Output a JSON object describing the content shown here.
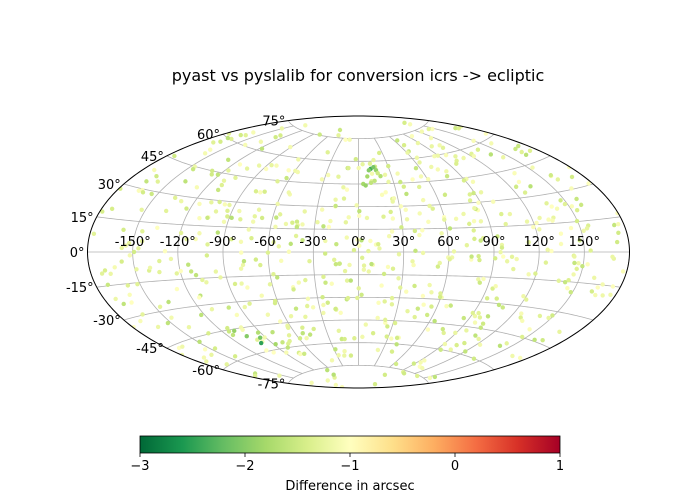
{
  "chart_data": {
    "type": "scatter",
    "projection": "aitoff",
    "title": "pyast vs pyslalib for conversion icrs -> ecliptic",
    "x_ticks": [
      "-150°",
      "-120°",
      "-90°",
      "-60°",
      "-30°",
      "0°",
      "30°",
      "60°",
      "90°",
      "120°",
      "150°"
    ],
    "y_ticks": [
      "-75°",
      "-60°",
      "-45°",
      "-30°",
      "-15°",
      "0°",
      "15°",
      "30°",
      "45°",
      "60°",
      "75°"
    ],
    "grid": true,
    "colorbar": {
      "label": "Difference in arcsec",
      "range": [
        -3,
        1
      ],
      "tick_labels": [
        "−3",
        "−2",
        "−1",
        "0",
        "1"
      ],
      "colormap": "RdYlGn_r",
      "colors": [
        "#006837",
        "#1a9850",
        "#66bd63",
        "#a6d96a",
        "#d9ef8b",
        "#ffffbf",
        "#fee08b",
        "#fdae61",
        "#f46d43",
        "#d73027",
        "#a50026"
      ]
    },
    "point_size": 2.2,
    "cluster_points": [
      {
        "lon": 12,
        "lat": 55,
        "value": -2.4
      },
      {
        "lon": 15,
        "lat": 56,
        "value": -2.1
      },
      {
        "lon": 10,
        "lat": 54,
        "value": -2.0
      },
      {
        "lon": 17,
        "lat": 54,
        "value": -1.9
      },
      {
        "lon": 8,
        "lat": 50,
        "value": -1.8
      },
      {
        "lon": 20,
        "lat": 50,
        "value": -1.7
      },
      {
        "lon": 4,
        "lat": 45,
        "value": -1.8
      },
      {
        "lon": 6,
        "lat": 44,
        "value": -1.9
      },
      {
        "lon": 14,
        "lat": 47,
        "value": -1.6
      },
      {
        "lon": 18,
        "lat": 52,
        "value": -1.5
      },
      {
        "lon": -100,
        "lat": -55,
        "value": -2.5
      },
      {
        "lon": -95,
        "lat": -52,
        "value": -2.1
      },
      {
        "lon": -105,
        "lat": -50,
        "value": -2.0
      },
      {
        "lon": -110,
        "lat": -46,
        "value": -1.9
      },
      {
        "lon": -88,
        "lat": -57,
        "value": -1.8
      },
      {
        "lon": -92,
        "lat": -49,
        "value": -1.7
      },
      {
        "lon": -115,
        "lat": -48,
        "value": -1.6
      },
      {
        "lon": -80,
        "lat": -60,
        "value": -1.6
      },
      {
        "lon": -70,
        "lat": -65,
        "value": -1.5
      }
    ],
    "background_points": {
      "count": 650,
      "seed": 20240607,
      "value_range": [
        -1.7,
        -1.0
      ]
    }
  }
}
